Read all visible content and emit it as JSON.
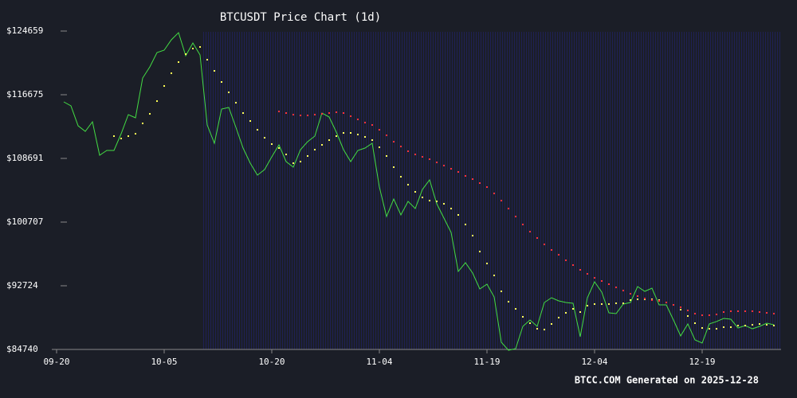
{
  "chart_data": {
    "type": "line",
    "title": "BTCUSDT Price Chart (1d)",
    "footer": "BTCC.COM Generated on 2025-12-28",
    "x": [
      "09-20",
      "09-21",
      "09-22",
      "09-23",
      "09-24",
      "09-25",
      "09-26",
      "09-27",
      "09-28",
      "09-29",
      "09-30",
      "10-01",
      "10-02",
      "10-03",
      "10-04",
      "10-05",
      "10-06",
      "10-07",
      "10-08",
      "10-09",
      "10-10",
      "10-11",
      "10-12",
      "10-13",
      "10-14",
      "10-15",
      "10-16",
      "10-17",
      "10-18",
      "10-19",
      "10-20",
      "10-21",
      "10-22",
      "10-23",
      "10-24",
      "10-25",
      "10-26",
      "10-27",
      "10-28",
      "10-29",
      "10-30",
      "10-31",
      "11-01",
      "11-02",
      "11-03",
      "11-04",
      "11-05",
      "11-06",
      "11-07",
      "11-08",
      "11-09",
      "11-10",
      "11-11",
      "11-12",
      "11-13",
      "11-14",
      "11-15",
      "11-16",
      "11-17",
      "11-18",
      "11-19",
      "11-20",
      "11-21",
      "11-22",
      "11-23",
      "11-24",
      "11-25",
      "11-26",
      "11-27",
      "11-28",
      "11-29",
      "11-30",
      "12-01",
      "12-02",
      "12-03",
      "12-04",
      "12-05",
      "12-06",
      "12-07",
      "12-08",
      "12-09",
      "12-10",
      "12-11",
      "12-12",
      "12-13",
      "12-14",
      "12-15",
      "12-16",
      "12-17",
      "12-18",
      "12-19",
      "12-20",
      "12-21",
      "12-22",
      "12-23",
      "12-24",
      "12-25",
      "12-26",
      "12-27",
      "12-28",
      "12-29"
    ],
    "xticks": [
      "09-20",
      "10-05",
      "10-20",
      "11-04",
      "11-19",
      "12-04",
      "12-19"
    ],
    "ylim": [
      84740,
      124659
    ],
    "yticks": [
      {
        "value": 84740,
        "label": "$84740"
      },
      {
        "value": 92724,
        "label": "$92724"
      },
      {
        "value": 100707,
        "label": "$100707"
      },
      {
        "value": 108691,
        "label": "$108691"
      },
      {
        "value": 116675,
        "label": "$116675"
      },
      {
        "value": 124659,
        "label": "$124659"
      }
    ],
    "series": [
      {
        "style": "line",
        "color": "#44dd44",
        "values": [
          null,
          115777,
          115278,
          112782,
          112084,
          113281,
          109090,
          109689,
          109689,
          111785,
          114180,
          113781,
          118771,
          120168,
          121964,
          122264,
          123561,
          124459,
          121565,
          123162,
          121665,
          112882,
          110587,
          114878,
          115078,
          112583,
          109988,
          108092,
          106595,
          107294,
          108890,
          110387,
          108292,
          107593,
          109789,
          110787,
          111485,
          114379,
          113880,
          111984,
          109789,
          108292,
          109689,
          109988,
          110587,
          105098,
          101405,
          103601,
          101605,
          103302,
          102403,
          104798,
          105996,
          103002,
          101205,
          99409,
          94519,
          95617,
          94320,
          92324,
          92922,
          91326,
          85637,
          84639,
          84839,
          87633,
          88431,
          87633,
          90627,
          91226,
          90827,
          90627,
          90527,
          86336,
          91226,
          93222,
          91924,
          89330,
          89230,
          90428,
          90627,
          92623,
          92024,
          92424,
          90329,
          90329,
          88431,
          86435,
          87938,
          85941,
          85542,
          87938,
          88236,
          88631,
          88531,
          87433,
          87732,
          87332,
          87633,
          88032,
          87833
        ]
      },
      {
        "style": "dots",
        "color": "#ffff55",
        "values": [
          null,
          null,
          null,
          null,
          null,
          null,
          null,
          null,
          111485,
          111186,
          111485,
          111785,
          113082,
          114279,
          115875,
          117772,
          119367,
          120767,
          121765,
          122463,
          122663,
          121066,
          119669,
          118272,
          116974,
          115677,
          114379,
          113381,
          112283,
          111285,
          110487,
          109988,
          109190,
          108092,
          108292,
          108993,
          109789,
          110387,
          110987,
          111485,
          111885,
          111885,
          111685,
          111385,
          110987,
          110087,
          108993,
          107593,
          106395,
          105397,
          104499,
          103800,
          103401,
          103302,
          103002,
          102403,
          101605,
          100407,
          99010,
          97014,
          95517,
          94020,
          92024,
          90727,
          89829,
          88831,
          88033,
          87332,
          87232,
          87933,
          88731,
          89330,
          89829,
          89430,
          90229,
          90427,
          90427,
          90427,
          90527,
          90527,
          90926,
          91026,
          91026,
          91026,
          90926,
          90627,
          90327,
          89729,
          88930,
          88033,
          87432,
          87332,
          87332,
          87532,
          87532,
          87733,
          87733,
          87833,
          87933,
          87833,
          87733
        ]
      },
      {
        "style": "dots",
        "color": "#ff3333",
        "values": [
          null,
          null,
          null,
          null,
          null,
          null,
          null,
          null,
          null,
          null,
          null,
          null,
          null,
          null,
          null,
          null,
          null,
          null,
          null,
          null,
          null,
          null,
          null,
          null,
          null,
          null,
          null,
          null,
          null,
          null,
          null,
          114579,
          114379,
          114179,
          114080,
          114080,
          114179,
          114279,
          114379,
          114479,
          114379,
          113980,
          113581,
          113182,
          112882,
          112283,
          111585,
          110787,
          110188,
          109589,
          109190,
          108890,
          108591,
          108192,
          107793,
          107393,
          106994,
          106495,
          106096,
          105597,
          105098,
          104300,
          103401,
          102403,
          101405,
          100407,
          99509,
          98711,
          97912,
          97213,
          96615,
          95917,
          95318,
          94720,
          94220,
          93721,
          93322,
          92922,
          92523,
          92124,
          91725,
          91426,
          91126,
          90926,
          90827,
          90627,
          90327,
          90028,
          89629,
          89230,
          89030,
          89030,
          89130,
          89430,
          89530,
          89530,
          89530,
          89530,
          89430,
          89330,
          89230
        ]
      }
    ]
  }
}
